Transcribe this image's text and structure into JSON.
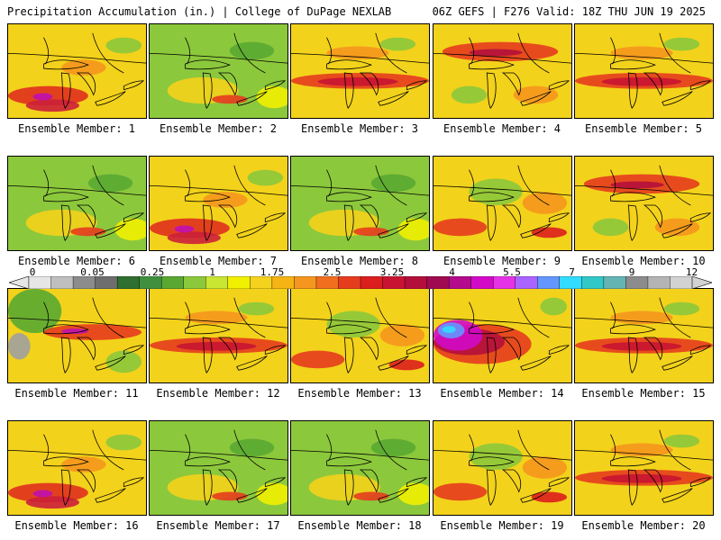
{
  "header": {
    "left": "Precipitation Accumulation (in.) | College of DuPage NEXLAB",
    "right": "06Z GEFS | F276 Valid: 18Z THU JUN 19 2025"
  },
  "colorbar": {
    "labels": [
      "0",
      "0.05",
      "0.25",
      "1",
      "1.75",
      "2.5",
      "3.25",
      "4",
      "5.5",
      "7",
      "9",
      "12"
    ],
    "colors": [
      "#e6e6e6",
      "#bfbfbf",
      "#8c8c8c",
      "#6e6e6e",
      "#2f6f2f",
      "#3f8f3f",
      "#5aa832",
      "#8cc83c",
      "#c8e632",
      "#f0f000",
      "#f5d21e",
      "#f5b414",
      "#f5961e",
      "#f06e1e",
      "#e63c1e",
      "#dc1e1e",
      "#c81432",
      "#b40f3c",
      "#a00a50",
      "#b40a8c",
      "#d20ac8",
      "#e632e6",
      "#aa64ff",
      "#6496ff",
      "#32dcff",
      "#32c8c8",
      "#64b4b4",
      "#8c8c8c",
      "#b4b4b4",
      "#d2d2d2"
    ]
  },
  "panels": [
    {
      "label": "Ensemble Member: 1",
      "scheme": "wet-south"
    },
    {
      "label": "Ensemble Member: 2",
      "scheme": "green"
    },
    {
      "label": "Ensemble Member: 3",
      "scheme": "red-band"
    },
    {
      "label": "Ensemble Member: 4",
      "scheme": "red-north"
    },
    {
      "label": "Ensemble Member: 5",
      "scheme": "red-band"
    },
    {
      "label": "Ensemble Member: 6",
      "scheme": "green"
    },
    {
      "label": "Ensemble Member: 7",
      "scheme": "wet-south"
    },
    {
      "label": "Ensemble Member: 8",
      "scheme": "green"
    },
    {
      "label": "Ensemble Member: 9",
      "scheme": "mixed"
    },
    {
      "label": "Ensemble Member: 10",
      "scheme": "red-north"
    },
    {
      "label": "Ensemble Member: 11",
      "scheme": "green-west"
    },
    {
      "label": "Ensemble Member: 12",
      "scheme": "red-band"
    },
    {
      "label": "Ensemble Member: 13",
      "scheme": "mixed"
    },
    {
      "label": "Ensemble Member: 14",
      "scheme": "purple-core"
    },
    {
      "label": "Ensemble Member: 15",
      "scheme": "red-band"
    },
    {
      "label": "Ensemble Member: 16",
      "scheme": "wet-south"
    },
    {
      "label": "Ensemble Member: 17",
      "scheme": "green"
    },
    {
      "label": "Ensemble Member: 18",
      "scheme": "green"
    },
    {
      "label": "Ensemble Member: 19",
      "scheme": "mixed"
    },
    {
      "label": "Ensemble Member: 20",
      "scheme": "red-band"
    }
  ]
}
